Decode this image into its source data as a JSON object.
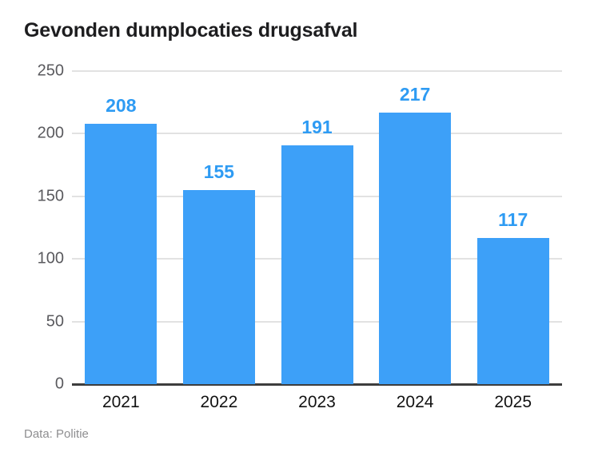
{
  "chart_data": {
    "type": "bar",
    "title": "Gevonden dumplocaties drugsafval",
    "categories": [
      "2021",
      "2022",
      "2023",
      "2024",
      "2025"
    ],
    "values": [
      208,
      155,
      191,
      217,
      117
    ],
    "xlabel": "",
    "ylabel": "",
    "ylim": [
      0,
      250
    ],
    "yticks": [
      0,
      50,
      100,
      150,
      200,
      250
    ],
    "grid": true,
    "legend": "none",
    "bar_color": "#3da0f8",
    "value_label_color": "#2e9bf3",
    "gridline_color": "#e2e2e2",
    "axis_line_color": "#3d3d3d",
    "tick_label_color": "#5a5a5e"
  },
  "footer": {
    "source": "Data: Politie"
  }
}
